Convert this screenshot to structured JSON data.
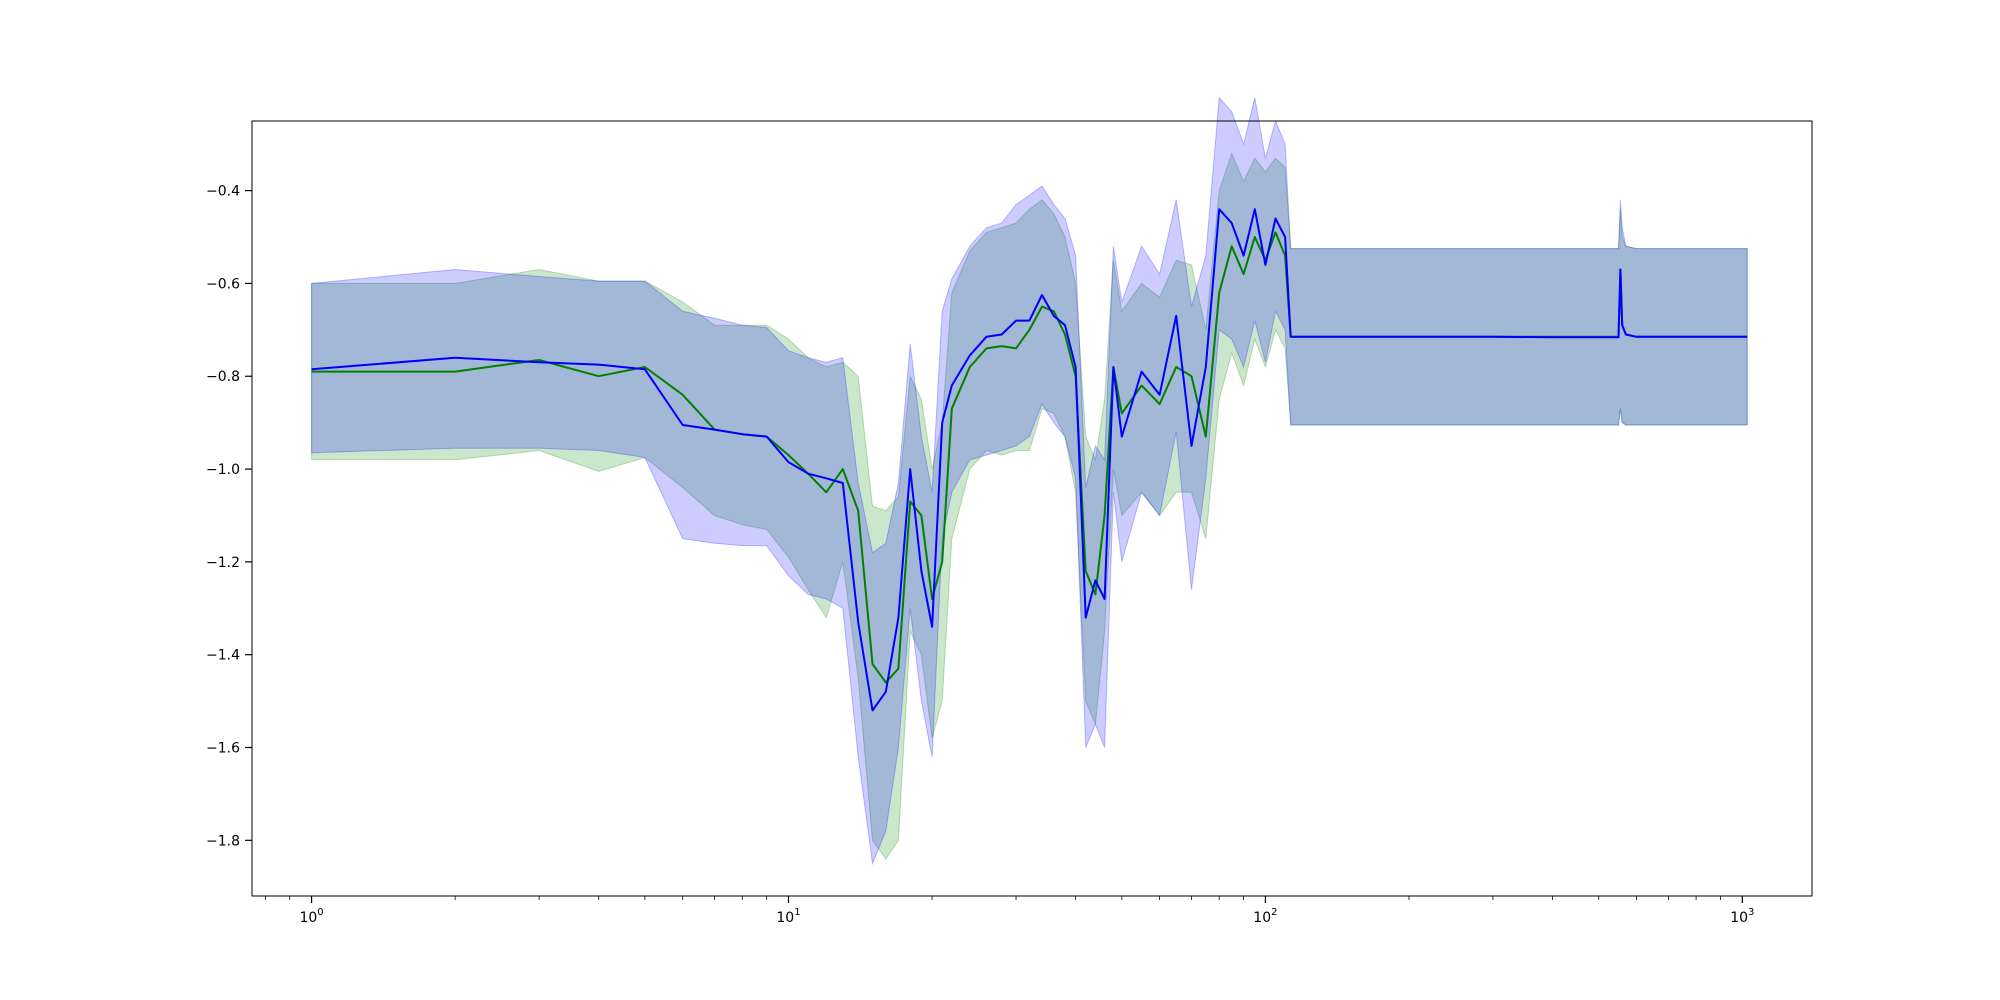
{
  "chart_data": {
    "type": "line",
    "title": "",
    "xlabel": "",
    "ylabel": "",
    "xscale": "log",
    "xlim": [
      0.75,
      1400
    ],
    "ylim": [
      -1.92,
      -0.25
    ],
    "grid": false,
    "x_ticks": [
      {
        "value": 1,
        "base": "10",
        "exp": "0"
      },
      {
        "value": 10,
        "base": "10",
        "exp": "1"
      },
      {
        "value": 100,
        "base": "10",
        "exp": "2"
      },
      {
        "value": 1000,
        "base": "10",
        "exp": "3"
      }
    ],
    "y_ticks": [
      {
        "value": -0.4,
        "label": "−0.4"
      },
      {
        "value": -0.6,
        "label": "−0.6"
      },
      {
        "value": -0.8,
        "label": "−0.8"
      },
      {
        "value": -1.0,
        "label": "−1.0"
      },
      {
        "value": -1.2,
        "label": "−1.2"
      },
      {
        "value": -1.4,
        "label": "−1.4"
      },
      {
        "value": -1.6,
        "label": "−1.6"
      },
      {
        "value": -1.8,
        "label": "−1.8"
      }
    ],
    "series": [
      {
        "color": "#008000",
        "band_color": "#008000",
        "band_opacity": 0.2,
        "x": [
          1,
          2,
          3,
          4,
          5,
          6,
          7,
          8,
          9,
          10,
          11,
          12,
          13,
          14,
          15,
          16,
          17,
          18,
          19,
          20,
          21,
          22,
          24,
          26,
          28,
          30,
          32,
          34,
          36,
          38,
          40,
          42,
          44,
          46,
          48,
          50,
          55,
          60,
          65,
          70,
          75,
          80,
          85,
          90,
          95,
          100,
          105,
          110,
          113,
          200,
          300,
          400,
          550,
          555,
          560,
          570,
          600,
          800,
          1024
        ],
        "y": [
          -0.79,
          -0.79,
          -0.765,
          -0.8,
          -0.78,
          -0.84,
          -0.915,
          -0.925,
          -0.93,
          -0.97,
          -1.01,
          -1.05,
          -1.0,
          -1.09,
          -1.42,
          -1.46,
          -1.43,
          -1.07,
          -1.1,
          -1.28,
          -1.2,
          -0.87,
          -0.78,
          -0.74,
          -0.735,
          -0.74,
          -0.7,
          -0.65,
          -0.66,
          -0.71,
          -0.8,
          -1.22,
          -1.27,
          -1.1,
          -0.78,
          -0.88,
          -0.82,
          -0.86,
          -0.78,
          -0.8,
          -0.93,
          -0.62,
          -0.52,
          -0.58,
          -0.5,
          -0.55,
          -0.49,
          -0.54,
          -0.715,
          -0.715,
          -0.715,
          -0.715,
          -0.715,
          -0.57,
          -0.69,
          -0.71,
          -0.715,
          -0.715,
          -0.715
        ],
        "lower": [
          -0.98,
          -0.98,
          -0.96,
          -1.005,
          -0.975,
          -1.04,
          -1.1,
          -1.12,
          -1.13,
          -1.19,
          -1.26,
          -1.32,
          -1.2,
          -1.45,
          -1.8,
          -1.84,
          -1.8,
          -1.35,
          -1.4,
          -1.58,
          -1.5,
          -1.15,
          -1.0,
          -0.96,
          -0.97,
          -0.96,
          -0.96,
          -0.87,
          -0.88,
          -0.93,
          -1.05,
          -1.5,
          -1.55,
          -1.35,
          -1.0,
          -1.1,
          -1.05,
          -1.1,
          -1.05,
          -1.05,
          -1.15,
          -0.85,
          -0.75,
          -0.82,
          -0.72,
          -0.78,
          -0.7,
          -0.74,
          -0.905,
          -0.905,
          -0.905,
          -0.905,
          -0.905,
          -0.87,
          -0.9,
          -0.905,
          -0.905,
          -0.905,
          -0.905
        ],
        "upper": [
          -0.6,
          -0.6,
          -0.57,
          -0.595,
          -0.595,
          -0.64,
          -0.69,
          -0.69,
          -0.69,
          -0.72,
          -0.76,
          -0.78,
          -0.77,
          -0.8,
          -1.08,
          -1.09,
          -1.06,
          -0.8,
          -0.85,
          -1.0,
          -0.9,
          -0.62,
          -0.53,
          -0.49,
          -0.48,
          -0.47,
          -0.44,
          -0.42,
          -0.45,
          -0.5,
          -0.6,
          -0.93,
          -0.98,
          -0.85,
          -0.55,
          -0.66,
          -0.6,
          -0.63,
          -0.55,
          -0.56,
          -0.7,
          -0.4,
          -0.32,
          -0.38,
          -0.33,
          -0.36,
          -0.33,
          -0.35,
          -0.525,
          -0.525,
          -0.525,
          -0.525,
          -0.525,
          -0.44,
          -0.5,
          -0.52,
          -0.525,
          -0.525,
          -0.525
        ]
      },
      {
        "color": "#0000ff",
        "band_color": "#0000ff",
        "band_opacity": 0.2,
        "x": [
          1,
          2,
          3,
          4,
          5,
          6,
          7,
          8,
          9,
          10,
          11,
          12,
          13,
          14,
          15,
          16,
          17,
          18,
          19,
          20,
          21,
          22,
          24,
          26,
          28,
          30,
          32,
          34,
          36,
          38,
          40,
          42,
          44,
          46,
          48,
          50,
          55,
          60,
          65,
          70,
          75,
          80,
          85,
          90,
          95,
          100,
          105,
          110,
          113,
          200,
          300,
          400,
          550,
          555,
          560,
          570,
          600,
          800,
          1024
        ],
        "y": [
          -0.785,
          -0.76,
          -0.77,
          -0.775,
          -0.785,
          -0.905,
          -0.915,
          -0.925,
          -0.93,
          -0.985,
          -1.01,
          -1.02,
          -1.03,
          -1.33,
          -1.52,
          -1.48,
          -1.32,
          -1.0,
          -1.22,
          -1.34,
          -0.9,
          -0.82,
          -0.755,
          -0.715,
          -0.71,
          -0.68,
          -0.68,
          -0.625,
          -0.67,
          -0.69,
          -0.78,
          -1.32,
          -1.24,
          -1.28,
          -0.78,
          -0.93,
          -0.79,
          -0.84,
          -0.67,
          -0.95,
          -0.78,
          -0.44,
          -0.47,
          -0.54,
          -0.44,
          -0.56,
          -0.46,
          -0.5,
          -0.715,
          -0.715,
          -0.715,
          -0.716,
          -0.716,
          -0.57,
          -0.69,
          -0.71,
          -0.715,
          -0.715,
          -0.715
        ],
        "lower": [
          -0.965,
          -0.955,
          -0.955,
          -0.96,
          -0.975,
          -1.15,
          -1.16,
          -1.165,
          -1.165,
          -1.23,
          -1.27,
          -1.28,
          -1.3,
          -1.62,
          -1.85,
          -1.78,
          -1.6,
          -1.3,
          -1.5,
          -1.62,
          -1.15,
          -1.05,
          -0.98,
          -0.97,
          -0.96,
          -0.95,
          -0.93,
          -0.86,
          -0.9,
          -0.93,
          -1.02,
          -1.6,
          -1.55,
          -1.6,
          -1.05,
          -1.2,
          -1.05,
          -1.1,
          -0.92,
          -1.26,
          -1.02,
          -0.7,
          -0.72,
          -0.78,
          -0.68,
          -0.77,
          -0.66,
          -0.7,
          -0.905,
          -0.905,
          -0.905,
          -0.905,
          -0.905,
          -0.87,
          -0.9,
          -0.905,
          -0.905,
          -0.905,
          -0.905
        ],
        "upper": [
          -0.6,
          -0.57,
          -0.585,
          -0.595,
          -0.595,
          -0.66,
          -0.675,
          -0.69,
          -0.695,
          -0.745,
          -0.76,
          -0.77,
          -0.76,
          -1.03,
          -1.18,
          -1.16,
          -1.03,
          -0.73,
          -0.93,
          -1.05,
          -0.66,
          -0.59,
          -0.52,
          -0.48,
          -0.47,
          -0.43,
          -0.41,
          -0.39,
          -0.43,
          -0.46,
          -0.54,
          -1.04,
          -0.95,
          -0.98,
          -0.52,
          -0.64,
          -0.52,
          -0.58,
          -0.42,
          -0.65,
          -0.54,
          -0.2,
          -0.23,
          -0.3,
          -0.2,
          -0.33,
          -0.25,
          -0.3,
          -0.525,
          -0.525,
          -0.525,
          -0.525,
          -0.525,
          -0.42,
          -0.48,
          -0.52,
          -0.525,
          -0.525,
          -0.525
        ]
      }
    ]
  }
}
